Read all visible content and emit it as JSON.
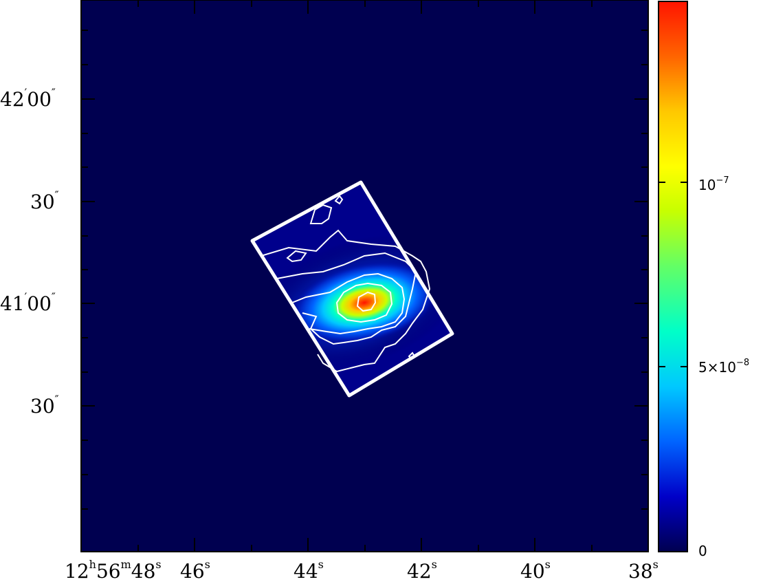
{
  "image": {
    "background_color": "#000050",
    "contour_color": "#ffffff",
    "footprint_color": "#ffffff"
  },
  "axes": {
    "x_ticks": [
      {
        "label": "12",
        "sup1": "h",
        "label2": "56",
        "sup2": "m",
        "label3": "48",
        "sup3": "s"
      },
      {
        "label": "46",
        "sup": "s"
      },
      {
        "label": "44",
        "sup": "s"
      },
      {
        "label": "42",
        "sup": "s"
      },
      {
        "label": "40",
        "sup": "s"
      },
      {
        "label": "38",
        "sup": "s"
      }
    ],
    "y_ticks": [
      {
        "label": "42",
        "prime": "′",
        "label2": "00",
        "dprime": "″"
      },
      {
        "label": "30",
        "dprime": "″"
      },
      {
        "label": "41",
        "prime": "′",
        "label2": "00",
        "dprime": "″"
      },
      {
        "label": "30",
        "dprime": "″"
      }
    ]
  },
  "colorbar": {
    "tick_labels": [
      {
        "label": "0"
      },
      {
        "label": "5×10",
        "exp": "−8"
      },
      {
        "label": "10",
        "exp": "−7"
      }
    ],
    "colors": [
      "#000050",
      "#0000c8",
      "#0064ff",
      "#00c8ff",
      "#00ffc8",
      "#64ff64",
      "#c8ff00",
      "#ffff00",
      "#ffc800",
      "#ff6400",
      "#ff1400"
    ]
  }
}
